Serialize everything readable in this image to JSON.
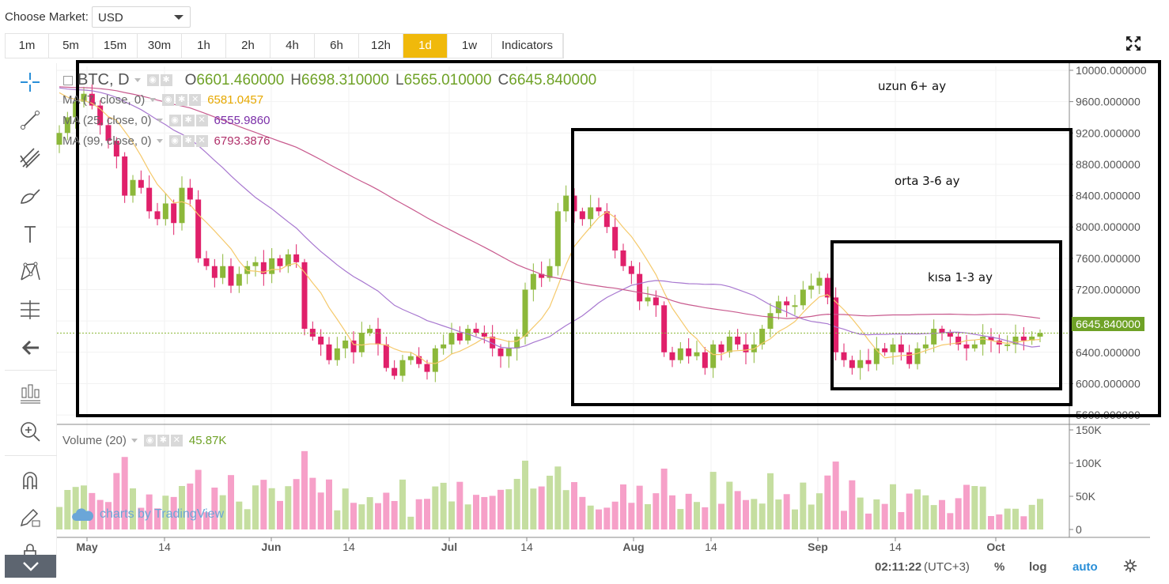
{
  "market": {
    "label": "Choose Market:",
    "selected": "USD"
  },
  "intervals": [
    {
      "label": "1m",
      "active": false
    },
    {
      "label": "5m",
      "active": false
    },
    {
      "label": "15m",
      "active": false
    },
    {
      "label": "30m",
      "active": false
    },
    {
      "label": "1h",
      "active": false
    },
    {
      "label": "2h",
      "active": false
    },
    {
      "label": "4h",
      "active": false
    },
    {
      "label": "6h",
      "active": false
    },
    {
      "label": "12h",
      "active": false
    },
    {
      "label": "1d",
      "active": true
    },
    {
      "label": "1w",
      "active": false
    },
    {
      "label": "Indicators",
      "active": false
    }
  ],
  "legend": {
    "symbol": "BTC, D",
    "open_label": "O",
    "open": "6601.460000",
    "high_label": "H",
    "high": "6698.310000",
    "low_label": "L",
    "low": "6565.010000",
    "close_label": "C",
    "close": "6645.840000",
    "ma7_label": "MA (7, close, 0)",
    "ma7_value": "6581.0457",
    "ma25_label": "MA (25, close, 0)",
    "ma25_value": "6555.9860",
    "ma99_label": "MA (99, close, 0)",
    "ma99_value": "6793.3876",
    "volume_label": "Volume (20)",
    "volume_value": "45.87K"
  },
  "colors": {
    "up": "#8cb83a",
    "down": "#e0206a",
    "ma7": "#f5c96b",
    "ma25": "#a878d0",
    "ma99": "#c85a8e",
    "ma7_text": "#e6a800",
    "ma25_text": "#7b2fa8",
    "ma99_text": "#b0306a",
    "vol_up": "#c5dea0",
    "vol_down": "#f6a0c8",
    "accent": "#f0b90b"
  },
  "annotations": {
    "long": "uzun 6+ ay",
    "medium": "orta 3-6 ay",
    "short": "kısa 1-3 ay"
  },
  "watermark": "charts by TradingView",
  "current_price_tag": "6645.840000",
  "status_bar": {
    "time": "02:11:22",
    "tz": "(UTC+3)",
    "percent": "%",
    "log": "log",
    "auto": "auto"
  },
  "tools": [
    "crosshair-icon",
    "trendline-icon",
    "fib-icon",
    "brush-icon",
    "text-icon",
    "pattern-icon",
    "measure-icon",
    "back-arrow-icon",
    "candles-icon",
    "zoom-in-icon",
    "magnet-icon",
    "pencil-lock-icon",
    "lock-icon"
  ],
  "chart_data": {
    "type": "candlestick",
    "price_axis": [
      "10000.000000",
      "9600.000000",
      "9200.000000",
      "8800.000000",
      "8400.000000",
      "8000.000000",
      "7600.000000",
      "7200.000000",
      "6800.000000",
      "6400.000000",
      "6000.000000",
      "5600.000000"
    ],
    "volume_axis": [
      "150K",
      "100K",
      "50K",
      "0"
    ],
    "x_ticks": [
      "May",
      "14",
      "Jun",
      "14",
      "Jul",
      "14",
      "Aug",
      "14",
      "Sep",
      "14",
      "Oct"
    ],
    "ylim": [
      5500,
      10050
    ],
    "closes": [
      9200,
      9400,
      9600,
      9700,
      9550,
      9300,
      9100,
      8900,
      8400,
      8600,
      8500,
      8200,
      8100,
      8300,
      8050,
      8500,
      8350,
      7600,
      7500,
      7350,
      7500,
      7250,
      7400,
      7500,
      7550,
      7400,
      7600,
      7500,
      7650,
      7550,
      6700,
      6600,
      6500,
      6300,
      6450,
      6550,
      6400,
      6650,
      6700,
      6500,
      6200,
      6100,
      6300,
      6350,
      6250,
      6150,
      6450,
      6500,
      6650,
      6550,
      6700,
      6650,
      6600,
      6450,
      6350,
      6450,
      6600,
      7200,
      7400,
      7350,
      7500,
      8200,
      8400,
      8200,
      8100,
      8250,
      8200,
      8000,
      7700,
      7500,
      7400,
      7050,
      7100,
      7000,
      6400,
      6300,
      6450,
      6350,
      6400,
      6200,
      6500,
      6400,
      6600,
      6500,
      6400,
      6500,
      6700,
      6900,
      7050,
      7000,
      7000,
      7200,
      7250,
      7350,
      7100,
      6400,
      6300,
      6200,
      6300,
      6250,
      6450,
      6400,
      6500,
      6400,
      6250,
      6450,
      6500,
      6700,
      6650,
      6600,
      6500,
      6450,
      6500,
      6600,
      6550,
      6500,
      6500,
      6600,
      6550,
      6600,
      6645
    ]
  }
}
